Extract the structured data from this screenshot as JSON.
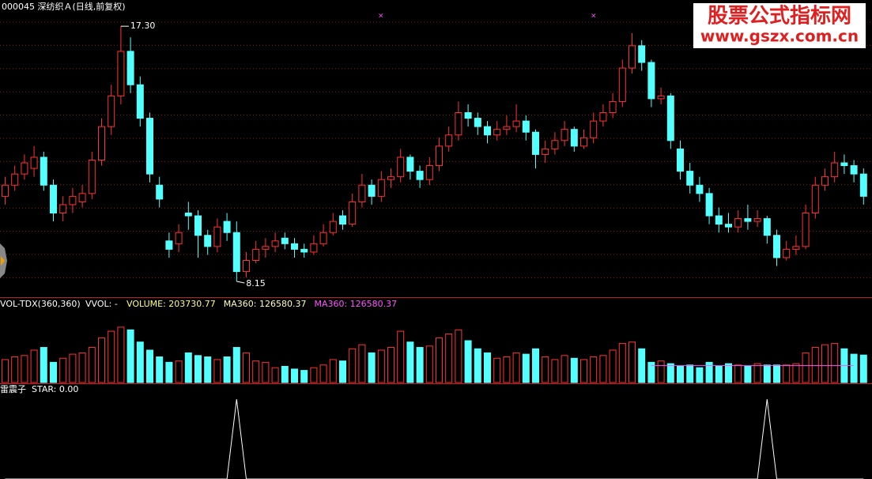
{
  "header": {
    "title": "000045 深纺织Ａ(日线,前复权)"
  },
  "watermark": {
    "line1": "股票公式指标网",
    "line2": "www.gszx.com.cn"
  },
  "chart_data": [
    {
      "type": "candlestick",
      "up_color": "#ff3232",
      "down_color": "#54ffff",
      "ylim": [
        7.61,
        18.24
      ],
      "annotations": [
        {
          "field": "high",
          "value": 17.3,
          "label": "17.30"
        },
        {
          "field": "low",
          "value": 8.15,
          "label": "8.15"
        }
      ],
      "ohlc": [
        [
          11.2,
          11.9,
          10.9,
          11.6
        ],
        [
          11.6,
          12.3,
          11.4,
          12.0
        ],
        [
          12.0,
          12.7,
          11.8,
          12.4
        ],
        [
          12.2,
          13.0,
          11.9,
          12.6
        ],
        [
          12.6,
          12.8,
          11.4,
          11.6
        ],
        [
          11.6,
          11.8,
          10.3,
          10.6
        ],
        [
          10.6,
          11.2,
          10.3,
          10.9
        ],
        [
          10.9,
          11.5,
          10.6,
          11.2
        ],
        [
          11.0,
          11.6,
          10.8,
          11.3
        ],
        [
          11.3,
          12.8,
          11.1,
          12.5
        ],
        [
          12.5,
          14.0,
          12.3,
          13.7
        ],
        [
          13.7,
          15.2,
          13.4,
          14.8
        ],
        [
          14.8,
          17.3,
          14.5,
          16.4
        ],
        [
          16.4,
          16.9,
          14.9,
          15.2
        ],
        [
          15.2,
          15.5,
          13.7,
          14.0
        ],
        [
          14.0,
          14.2,
          11.7,
          12.0
        ],
        [
          11.6,
          11.9,
          10.8,
          11.1
        ],
        [
          9.6,
          9.9,
          9.0,
          9.3
        ],
        [
          9.5,
          10.2,
          9.2,
          9.9
        ],
        [
          10.6,
          11.0,
          10.0,
          10.5
        ],
        [
          10.5,
          10.7,
          9.0,
          9.8
        ],
        [
          9.8,
          10.0,
          9.1,
          9.4
        ],
        [
          9.4,
          10.4,
          9.2,
          10.1
        ],
        [
          10.3,
          10.6,
          9.6,
          9.9
        ],
        [
          9.9,
          10.3,
          8.15,
          8.5
        ],
        [
          8.5,
          9.2,
          8.3,
          8.9
        ],
        [
          8.9,
          9.6,
          8.8,
          9.3
        ],
        [
          9.3,
          9.7,
          9.0,
          9.4
        ],
        [
          9.4,
          9.9,
          9.2,
          9.6
        ],
        [
          9.7,
          9.9,
          9.3,
          9.5
        ],
        [
          9.5,
          9.7,
          9.0,
          9.3
        ],
        [
          9.3,
          9.5,
          9.0,
          9.2
        ],
        [
          9.2,
          9.8,
          9.1,
          9.5
        ],
        [
          9.5,
          10.2,
          9.4,
          9.9
        ],
        [
          9.9,
          10.6,
          9.8,
          10.3
        ],
        [
          10.5,
          10.7,
          10.0,
          10.2
        ],
        [
          10.2,
          11.3,
          10.1,
          11.0
        ],
        [
          11.0,
          12.0,
          10.8,
          11.6
        ],
        [
          11.6,
          11.8,
          10.9,
          11.2
        ],
        [
          11.2,
          12.1,
          11.0,
          11.8
        ],
        [
          11.8,
          12.2,
          11.5,
          11.9
        ],
        [
          11.9,
          12.9,
          11.7,
          12.6
        ],
        [
          12.6,
          12.7,
          11.8,
          12.1
        ],
        [
          12.1,
          12.3,
          11.5,
          11.8
        ],
        [
          11.8,
          12.6,
          11.6,
          12.3
        ],
        [
          12.3,
          13.3,
          12.1,
          13.0
        ],
        [
          13.0,
          13.7,
          12.8,
          13.4
        ],
        [
          13.4,
          14.6,
          13.2,
          14.2
        ],
        [
          14.2,
          14.5,
          13.7,
          14.0
        ],
        [
          14.0,
          14.2,
          13.4,
          13.7
        ],
        [
          13.7,
          13.9,
          13.1,
          13.4
        ],
        [
          13.4,
          13.9,
          13.2,
          13.6
        ],
        [
          13.6,
          14.1,
          13.4,
          13.7
        ],
        [
          13.7,
          14.5,
          13.5,
          13.9
        ],
        [
          13.9,
          14.1,
          13.2,
          13.5
        ],
        [
          13.5,
          13.6,
          12.2,
          12.7
        ],
        [
          12.7,
          13.2,
          12.4,
          12.9
        ],
        [
          12.9,
          13.5,
          12.7,
          13.2
        ],
        [
          13.2,
          13.9,
          13.0,
          13.6
        ],
        [
          13.6,
          13.7,
          12.8,
          13.0
        ],
        [
          13.0,
          13.6,
          12.9,
          13.3
        ],
        [
          13.3,
          14.2,
          13.1,
          13.9
        ],
        [
          13.9,
          14.5,
          13.7,
          14.2
        ],
        [
          14.2,
          14.9,
          14.0,
          14.6
        ],
        [
          14.6,
          16.1,
          14.4,
          15.8
        ],
        [
          15.8,
          17.05,
          15.6,
          16.6
        ],
        [
          16.6,
          16.8,
          15.7,
          16.0
        ],
        [
          16.0,
          16.1,
          14.4,
          14.7
        ],
        [
          14.7,
          15.1,
          14.5,
          14.8
        ],
        [
          14.8,
          14.9,
          12.9,
          13.2
        ],
        [
          12.9,
          13.2,
          11.8,
          12.1
        ],
        [
          12.1,
          12.4,
          11.3,
          11.6
        ],
        [
          11.6,
          11.9,
          11.0,
          11.3
        ],
        [
          11.3,
          11.5,
          10.2,
          10.5
        ],
        [
          10.5,
          10.8,
          9.9,
          10.2
        ],
        [
          10.2,
          10.6,
          9.9,
          10.1
        ],
        [
          10.1,
          10.7,
          9.9,
          10.4
        ],
        [
          10.4,
          10.9,
          10.0,
          10.3
        ],
        [
          10.3,
          10.7,
          10.1,
          10.4
        ],
        [
          10.4,
          10.5,
          9.5,
          9.8
        ],
        [
          9.8,
          10.0,
          8.7,
          9.0
        ],
        [
          9.0,
          9.6,
          8.9,
          9.3
        ],
        [
          9.3,
          9.8,
          9.1,
          9.4
        ],
        [
          9.4,
          10.9,
          9.3,
          10.6
        ],
        [
          10.6,
          11.9,
          10.4,
          11.6
        ],
        [
          11.6,
          12.2,
          11.4,
          11.9
        ],
        [
          11.9,
          12.8,
          11.7,
          12.4
        ],
        [
          12.4,
          12.7,
          12.0,
          12.3
        ],
        [
          12.3,
          12.5,
          11.7,
          12.0
        ],
        [
          12.0,
          12.2,
          10.9,
          11.2
        ]
      ]
    },
    {
      "type": "volume",
      "title": "VOL-TDX(360,360)",
      "subtitle": "VVOL: -",
      "ylim": [
        0,
        620000
      ],
      "legend": [
        {
          "label": "VOLUME: 203730.77",
          "color": "#ffff80"
        },
        {
          "label": "MA360: 126580.37",
          "color": "#ffffc0"
        },
        {
          "label": "MA360: 126580.37",
          "color": "#ff54ff"
        }
      ],
      "series": [
        {
          "name": "VOLUME",
          "values": [
            170000,
            190000,
            200000,
            240000,
            260000,
            150000,
            180000,
            210000,
            220000,
            260000,
            330000,
            380000,
            410000,
            390000,
            300000,
            240000,
            190000,
            150000,
            160000,
            220000,
            200000,
            190000,
            170000,
            190000,
            260000,
            220000,
            160000,
            150000,
            110000,
            120000,
            100000,
            90000,
            110000,
            130000,
            170000,
            160000,
            250000,
            280000,
            220000,
            240000,
            260000,
            380000,
            300000,
            260000,
            270000,
            330000,
            360000,
            390000,
            310000,
            250000,
            220000,
            180000,
            190000,
            220000,
            210000,
            250000,
            190000,
            170000,
            200000,
            180000,
            170000,
            190000,
            200000,
            240000,
            290000,
            300000,
            250000,
            150000,
            160000,
            140000,
            120000,
            130000,
            110000,
            150000,
            120000,
            140000,
            130000,
            120000,
            140000,
            130000,
            130000,
            130000,
            140000,
            220000,
            260000,
            280000,
            290000,
            250000,
            210000,
            203730.77
          ]
        },
        {
          "name": "MA360",
          "color": "#ff54ff",
          "values": [
            null,
            null,
            null,
            null,
            null,
            null,
            null,
            null,
            null,
            null,
            null,
            null,
            null,
            null,
            null,
            null,
            null,
            null,
            null,
            null,
            null,
            null,
            null,
            null,
            null,
            null,
            null,
            null,
            null,
            null,
            null,
            null,
            null,
            null,
            null,
            null,
            null,
            null,
            null,
            null,
            null,
            null,
            null,
            null,
            null,
            null,
            null,
            null,
            null,
            null,
            null,
            null,
            null,
            null,
            null,
            null,
            null,
            null,
            null,
            null,
            null,
            null,
            null,
            null,
            null,
            null,
            null,
            126580.37,
            126580.37,
            126580.37,
            126580.37,
            126580.37,
            126580.37,
            126580.37,
            126580.37,
            126580.37,
            126580.37,
            126580.37,
            126580.37,
            126580.37,
            126580.37,
            126580.37,
            126580.37,
            126580.37,
            126580.37,
            126580.37,
            126580.37,
            126580.37,
            126580.37
          ]
        }
      ]
    },
    {
      "type": "line",
      "title": "雷震子",
      "subtitle": "STAR: 0.00",
      "ylim": [
        0,
        1
      ],
      "series": [
        {
          "name": "STAR",
          "color": "#ffffff",
          "values": [
            0,
            0,
            0,
            0,
            0,
            0,
            0,
            0,
            0,
            0,
            0,
            0,
            0,
            0,
            0,
            0,
            0,
            0,
            0,
            0,
            0,
            0,
            0,
            0,
            1,
            0,
            0,
            0,
            0,
            0,
            0,
            0,
            0,
            0,
            0,
            0,
            0,
            0,
            0,
            0,
            0,
            0,
            0,
            0,
            0,
            0,
            0,
            0,
            0,
            0,
            0,
            0,
            0,
            0,
            0,
            0,
            0,
            0,
            0,
            0,
            0,
            0,
            0,
            0,
            0,
            0,
            0,
            0,
            0,
            0,
            0,
            0,
            0,
            0,
            0,
            0,
            0,
            0,
            0,
            1,
            0,
            0,
            0,
            0,
            0,
            0,
            0,
            0,
            0,
            0
          ]
        }
      ]
    }
  ]
}
